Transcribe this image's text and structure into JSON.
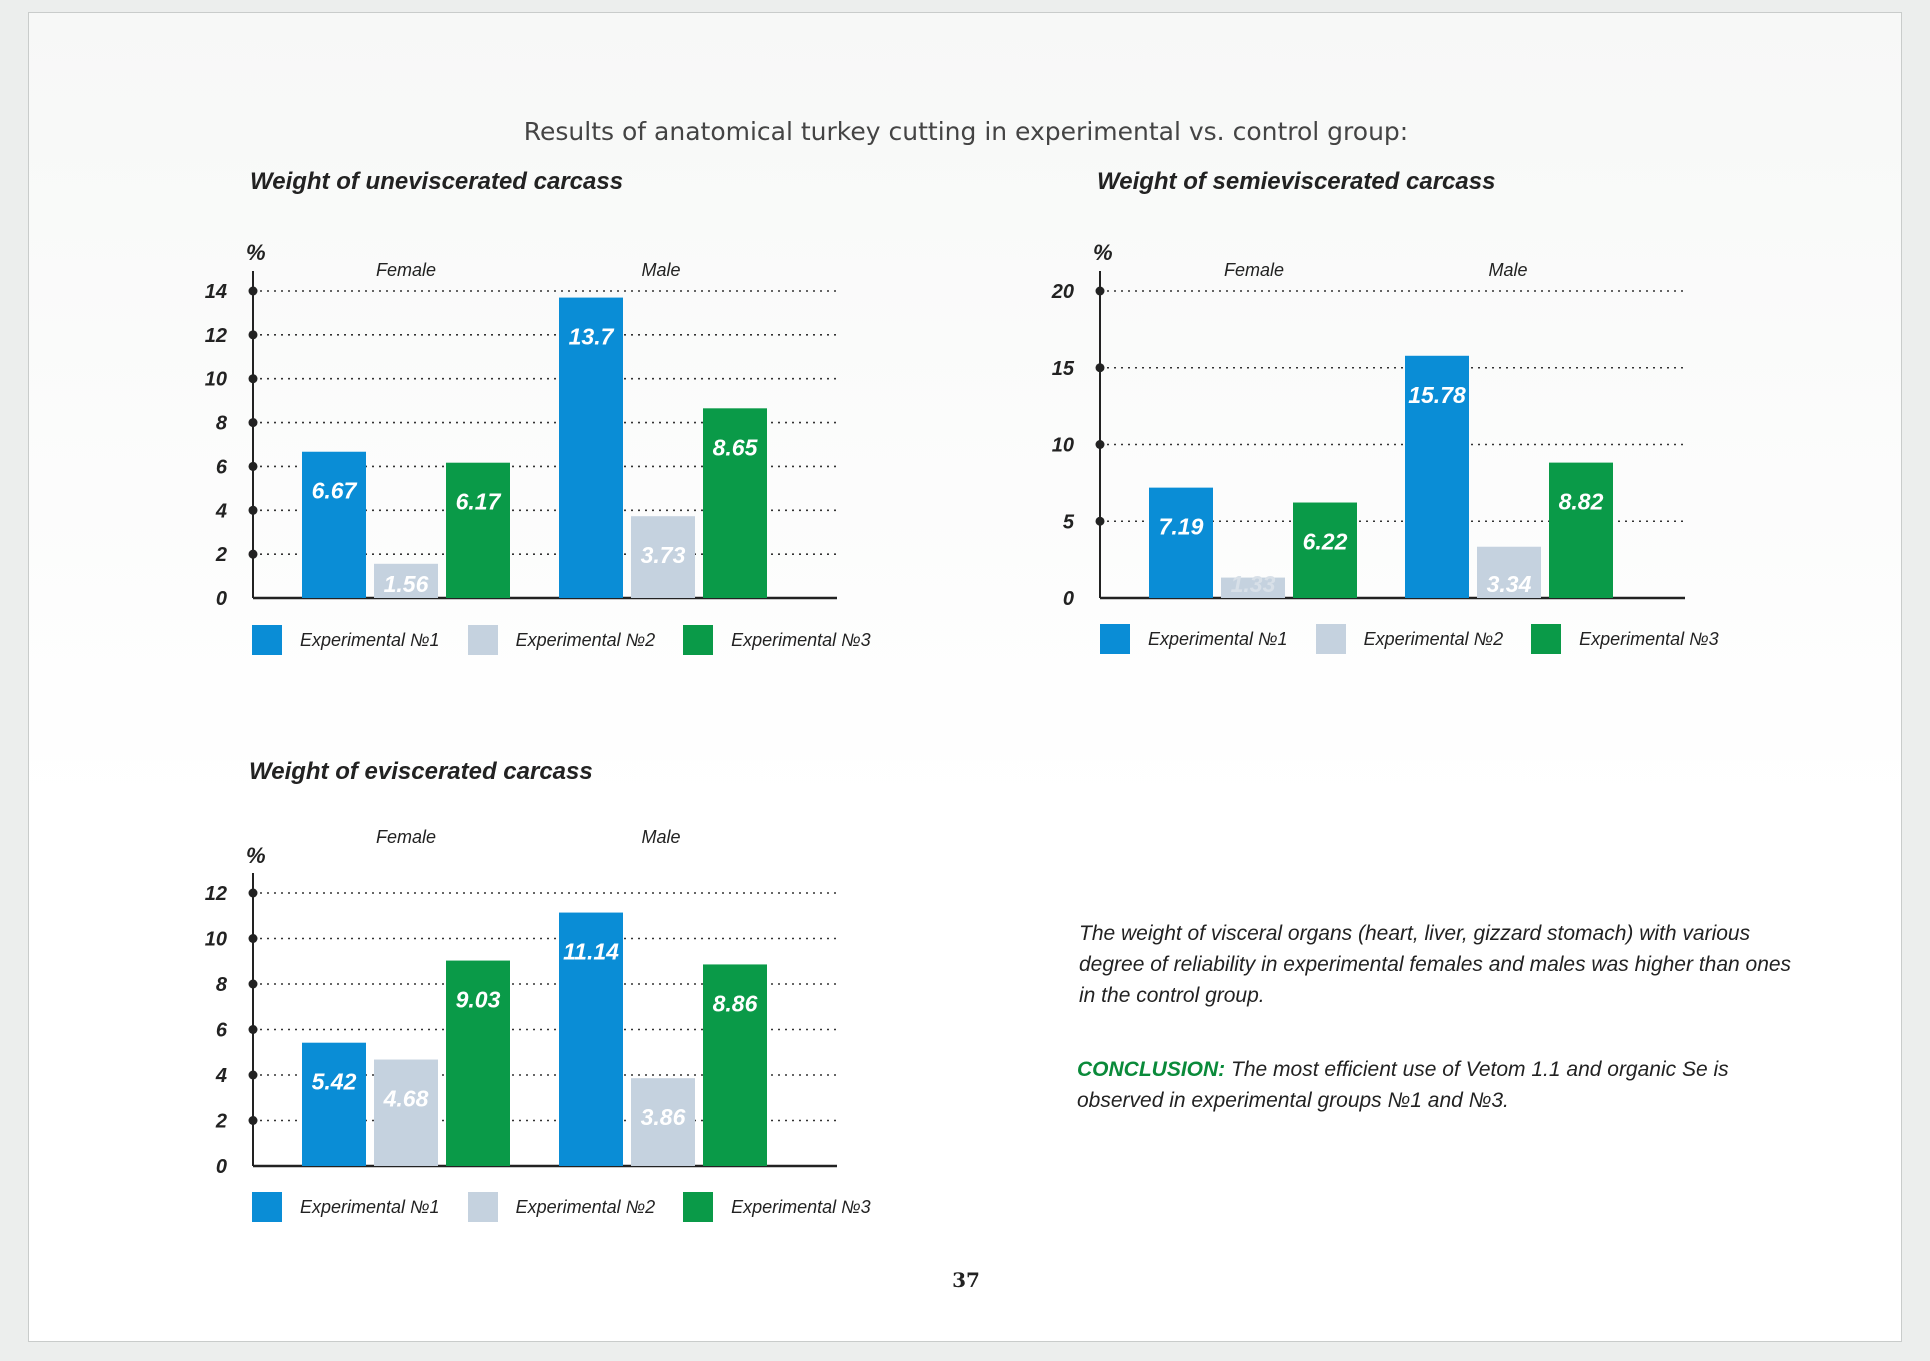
{
  "page": {
    "title": "Results of anatomical turkey cutting in experimental vs. control group:",
    "page_number": "37",
    "note": "The weight of visceral organs (heart, liver, gizzard stomach) with various degree of reliability in experimental females and males was higher than ones in the control group.",
    "conclusion_label": "CONCLUSION:",
    "conclusion_text": " The most efficient use of  Vetom 1.1 and organic Se is observed in experimental groups №1 and №3.",
    "colors": {
      "exp1": "#0a8dd6",
      "exp2": "#c5d2df",
      "exp3": "#0a9a48"
    }
  },
  "legend": [
    "Experimental №1",
    "Experimental №2",
    "Experimental №3"
  ],
  "chart_data": [
    {
      "type": "bar",
      "title": "Weight of uneviscerated carcass",
      "ylabel": "%",
      "categories": [
        "Female",
        "Male"
      ],
      "series": [
        {
          "name": "Experimental №1",
          "values": [
            6.67,
            13.7
          ]
        },
        {
          "name": "Experimental №2",
          "values": [
            1.56,
            3.73
          ]
        },
        {
          "name": "Experimental №3",
          "values": [
            6.17,
            8.65
          ]
        }
      ],
      "yticks": [
        0,
        2,
        4,
        6,
        8,
        10,
        12,
        14
      ],
      "ylim": [
        0,
        14
      ],
      "grid": true,
      "legend_position": "bottom"
    },
    {
      "type": "bar",
      "title": "Weight of semieviscerated carcass",
      "ylabel": "%",
      "categories": [
        "Female",
        "Male"
      ],
      "series": [
        {
          "name": "Experimental №1",
          "values": [
            7.19,
            15.78
          ]
        },
        {
          "name": "Experimental №2",
          "values": [
            1.33,
            3.34
          ]
        },
        {
          "name": "Experimental №3",
          "values": [
            6.22,
            8.82
          ]
        }
      ],
      "yticks": [
        0,
        5,
        10,
        15,
        20
      ],
      "ylim": [
        0,
        20
      ],
      "grid": true,
      "legend_position": "bottom"
    },
    {
      "type": "bar",
      "title": "Weight of eviscerated carcass",
      "ylabel": "%",
      "categories": [
        "Female",
        "Male"
      ],
      "series": [
        {
          "name": "Experimental №1",
          "values": [
            5.42,
            11.14
          ]
        },
        {
          "name": "Experimental №2",
          "values": [
            4.68,
            3.86
          ]
        },
        {
          "name": "Experimental №3",
          "values": [
            9.03,
            8.86
          ]
        }
      ],
      "yticks": [
        0,
        2,
        4,
        6,
        8,
        10,
        12
      ],
      "ylim": [
        0,
        12
      ],
      "grid": true,
      "legend_position": "bottom"
    }
  ]
}
